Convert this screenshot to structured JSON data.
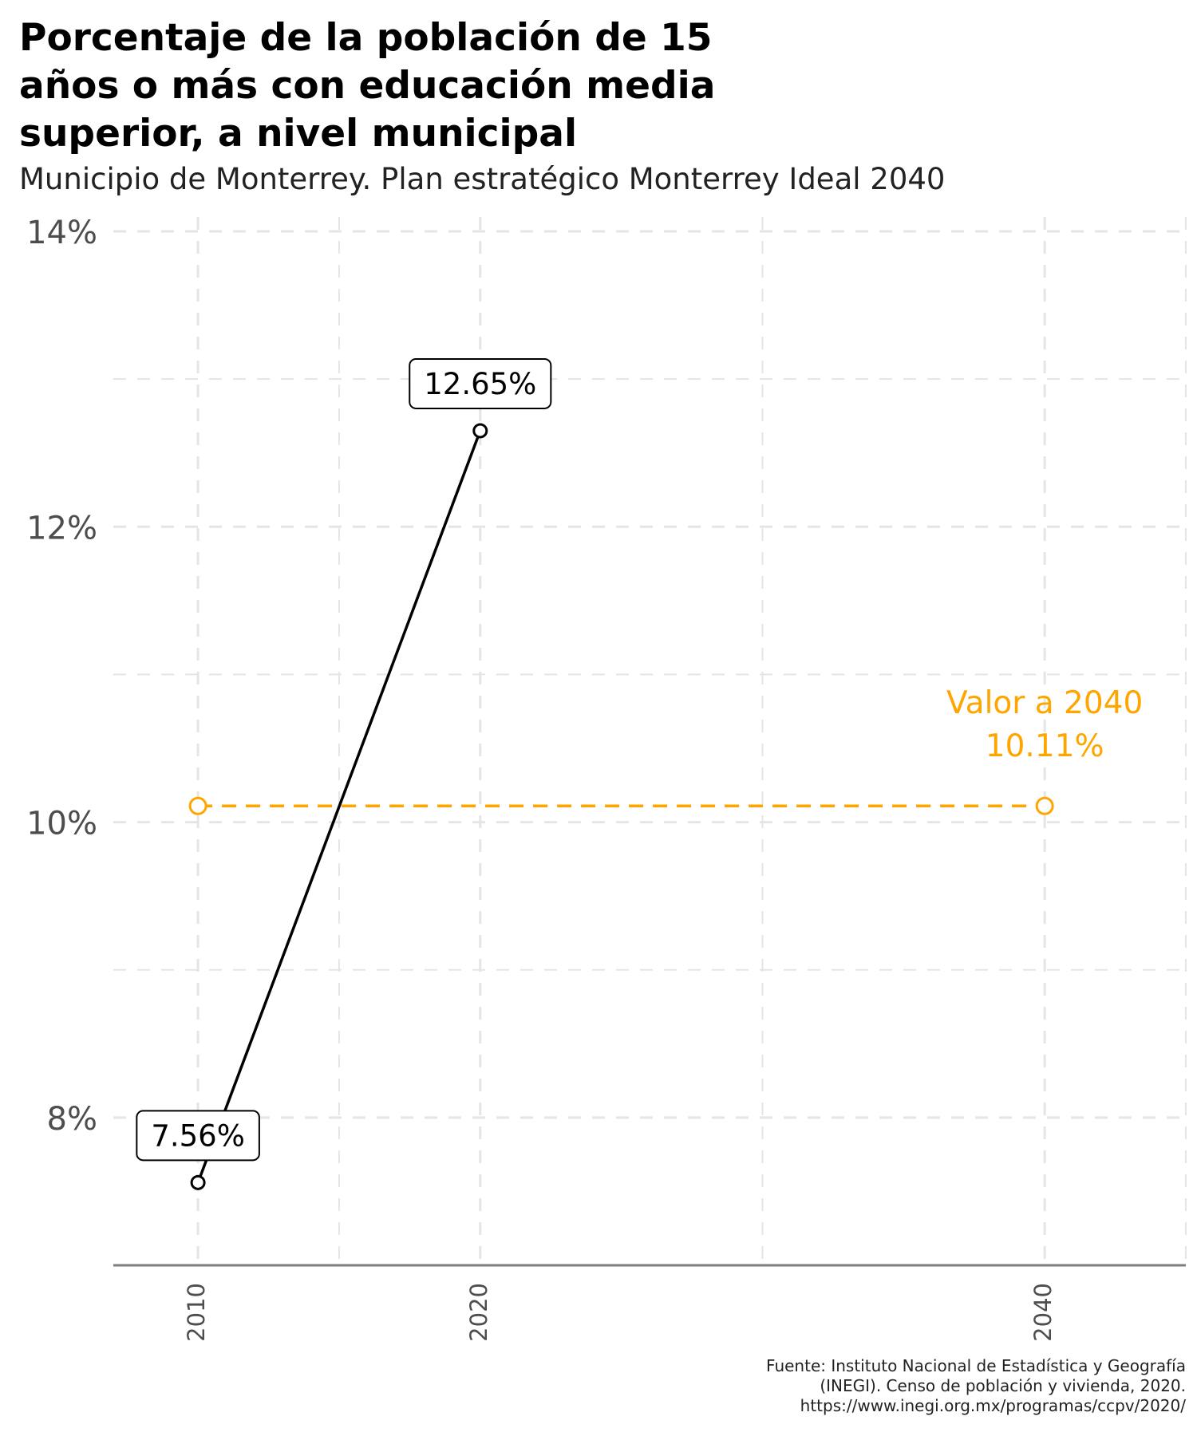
{
  "chart_data": {
    "type": "line",
    "title": "Porcentaje de la población de 15 años o más con educación media superior, a nivel municipal",
    "subtitle": "Municipio de Monterrey. Plan estratégico Monterrey Ideal 2040",
    "xlabel": "",
    "ylabel": "",
    "x_ticks": [
      "2010",
      "2020",
      "2040"
    ],
    "x_range": [
      2007,
      2045
    ],
    "y_ticks": [
      "8%",
      "10%",
      "12%",
      "14%"
    ],
    "y_range": [
      7.0,
      14.0
    ],
    "y_gridlines": [
      8,
      9,
      10,
      11,
      12,
      13,
      14
    ],
    "x_gridlines": [
      2010,
      2015,
      2020,
      2030,
      2040,
      2045
    ],
    "grid": true,
    "legend": "none",
    "series": [
      {
        "points": [
          {
            "x": 2010,
            "y": 7.56,
            "label": "7.56%"
          },
          {
            "x": 2020,
            "y": 12.65,
            "label": "12.65%"
          }
        ],
        "color": "#000000",
        "style": "solid"
      },
      {
        "points": [
          {
            "x": 2010,
            "y": 10.11
          },
          {
            "x": 2040,
            "y": 10.11
          }
        ],
        "color": "#FFA500",
        "style": "dashed"
      }
    ],
    "annotation": {
      "line1": "Valor a 2040",
      "line2": "10.11%",
      "x": 2040,
      "y": 10.11,
      "color": "#FFA500"
    },
    "source_lines": [
      "Fuente: Instituto Nacional de Estadística y Geografía",
      "(INEGI). Censo de población y vivienda, 2020.",
      "https://www.inegi.org.mx/programas/ccpv/2020/"
    ],
    "colors": {
      "grid": "#e5e5e5",
      "axis": "#7f7f7f",
      "tick_text": "#4d4d4d",
      "main": "#000000",
      "target": "#FFA500"
    }
  }
}
